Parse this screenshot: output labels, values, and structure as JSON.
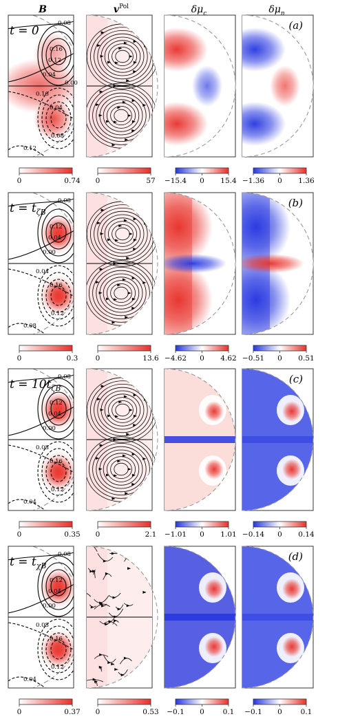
{
  "columns": [
    {
      "label": "B",
      "style": "bold-italic"
    },
    {
      "label": "v",
      "sup": "Pol",
      "style": "bold-italic"
    },
    {
      "label": "δμ",
      "sub": "c",
      "style": "italic"
    },
    {
      "label": "δμ",
      "sub": "n",
      "style": "italic"
    }
  ],
  "rows": [
    {
      "time_label": "t = 0",
      "panel_tag": "(a)",
      "contour_labels_upper": [
        "0.08",
        "0.16",
        "0.12",
        "0.04",
        "0.00"
      ],
      "contour_labels_lower": [
        "0.16",
        "0.04",
        "0.08",
        "0.12"
      ],
      "colorbars": [
        {
          "min": "0",
          "max": "0.74",
          "type": "seq"
        },
        {
          "min": "0",
          "max": "57",
          "type": "seq"
        },
        {
          "min": "−15.4",
          "mid": "0",
          "max": "15.4",
          "type": "div"
        },
        {
          "min": "−1.36",
          "mid": "0",
          "max": "1.36",
          "type": "div"
        }
      ]
    },
    {
      "time_label": "t = t_ζB",
      "panel_tag": "(b)",
      "contour_labels_upper": [
        "0.08",
        "0.12",
        "0.04",
        "0.00"
      ],
      "contour_labels_lower": [
        "0.04",
        "0.16",
        "0.12",
        "0.08"
      ],
      "colorbars": [
        {
          "min": "0",
          "max": "0.3",
          "type": "seq"
        },
        {
          "min": "0",
          "max": "13.6",
          "type": "seq"
        },
        {
          "min": "−4.62",
          "mid": "0",
          "max": "4.62",
          "type": "div"
        },
        {
          "min": "−0.51",
          "mid": "0",
          "max": "0.51",
          "type": "div"
        }
      ]
    },
    {
      "time_label": "t = 10t_ζB",
      "panel_tag": "(c)",
      "contour_labels_upper": [
        "0.08",
        "0.12",
        "0.04",
        "0.00"
      ],
      "contour_labels_lower": [
        "0.08",
        "0.16",
        "0.12",
        "0.04"
      ],
      "colorbars": [
        {
          "min": "0",
          "max": "0.35",
          "type": "seq"
        },
        {
          "min": "0",
          "max": "2.1",
          "type": "seq"
        },
        {
          "min": "−1.01",
          "mid": "0",
          "max": "1.01",
          "type": "div"
        },
        {
          "min": "−0.14",
          "mid": "0",
          "max": "0.14",
          "type": "div"
        }
      ]
    },
    {
      "time_label": "t = t_χB",
      "panel_tag": "(d)",
      "contour_labels_upper": [
        "0.08",
        "0.12",
        "0.04",
        "0.00"
      ],
      "contour_labels_lower": [
        "0.08",
        "0.16",
        "0.12",
        "0.04"
      ],
      "colorbars": [
        {
          "min": "0",
          "max": "0.37",
          "type": "seq"
        },
        {
          "min": "0",
          "max": "0.53",
          "type": "seq"
        },
        {
          "min": "−0.1",
          "mid": "0",
          "max": "0.1",
          "type": "div"
        },
        {
          "min": "−0.1",
          "mid": "0",
          "max": "0.1",
          "type": "div"
        }
      ]
    }
  ],
  "colors": {
    "red": "#e8302a",
    "blue": "#2536e0",
    "white": "#ffffff",
    "line": "#000000",
    "dash": "#999999"
  }
}
